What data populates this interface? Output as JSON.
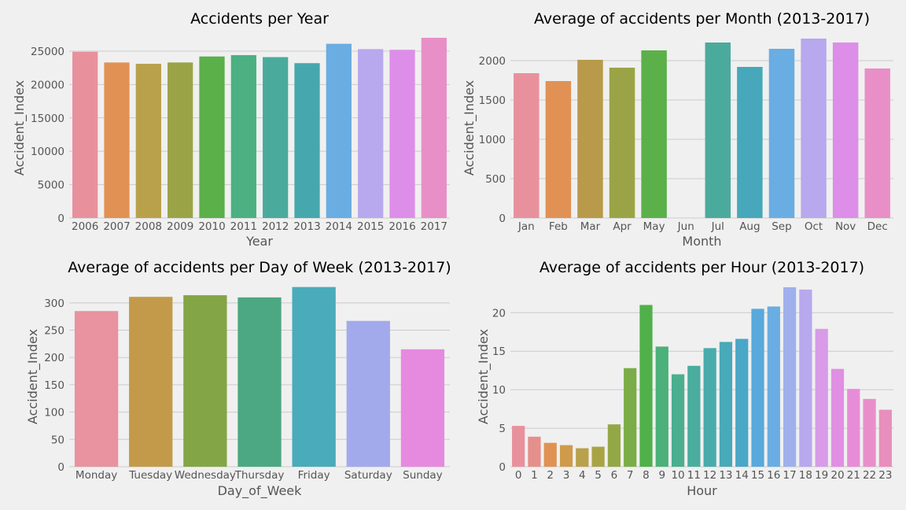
{
  "chart_data": [
    {
      "type": "bar",
      "title": "Accidents per Year",
      "xlabel": "Year",
      "ylabel": "Accident_Index",
      "ylim": [
        0,
        27000
      ],
      "yticks": [
        0,
        5000,
        10000,
        15000,
        20000,
        25000
      ],
      "categories": [
        "2006",
        "2007",
        "2008",
        "2009",
        "2010",
        "2011",
        "2012",
        "2013",
        "2014",
        "2015",
        "2016",
        "2017"
      ],
      "values": [
        24900,
        23300,
        23100,
        23300,
        24200,
        24400,
        24100,
        23200,
        26100,
        25300,
        25200,
        27000
      ],
      "colors": [
        "#e8919d",
        "#e29154",
        "#b8a14a",
        "#9aa446",
        "#5bb04a",
        "#4cb082",
        "#4aab9d",
        "#46a8ad",
        "#6aade2",
        "#b8a8ed",
        "#dd8ee8",
        "#e88fc7"
      ],
      "grid": true
    },
    {
      "type": "bar",
      "title": "Average of accidents per Month (2013-2017)",
      "xlabel": "Month",
      "ylabel": "Accident_Index",
      "ylim": [
        0,
        2290
      ],
      "yticks": [
        0,
        500,
        1000,
        1500,
        2000
      ],
      "categories": [
        "Jan",
        "Feb",
        "Mar",
        "Apr",
        "May",
        "Jun",
        "Jul",
        "Aug",
        "Sep",
        "Oct",
        "Nov",
        "Dec"
      ],
      "values": [
        1840,
        1740,
        2010,
        1910,
        2130,
        0,
        2230,
        1920,
        2150,
        2280,
        2230,
        1900
      ],
      "colors": [
        "#e8919d",
        "#e29154",
        "#b89a4a",
        "#9aa446",
        "#5bb04a",
        "#4cb082",
        "#4aab9d",
        "#46a8ba",
        "#6aade2",
        "#b8a8ed",
        "#dd8ee8",
        "#e88fc7"
      ],
      "grid": true
    },
    {
      "type": "bar",
      "title": "Average of accidents per Day of Week (2013-2017)",
      "xlabel": "Day_of_Week",
      "ylabel": "Accident_Index",
      "ylim": [
        0,
        330
      ],
      "yticks": [
        0,
        50,
        100,
        150,
        200,
        250,
        300
      ],
      "categories": [
        "Monday",
        "Tuesday",
        "Wednesday",
        "Thursday",
        "Friday",
        "Saturday",
        "Sunday"
      ],
      "values": [
        285,
        311,
        314,
        310,
        329,
        267,
        215
      ],
      "colors": [
        "#e8939f",
        "#c29a4a",
        "#83a546",
        "#4ba882",
        "#4aabba",
        "#a3aaeb",
        "#e68ae0"
      ],
      "grid": true
    },
    {
      "type": "bar",
      "title": "Average of accidents per Hour (2013-2017)",
      "xlabel": "Hour",
      "ylabel": "Accident_Index",
      "ylim": [
        0,
        23.4
      ],
      "yticks": [
        0,
        5,
        10,
        15,
        20
      ],
      "categories": [
        "0",
        "1",
        "2",
        "3",
        "4",
        "5",
        "6",
        "7",
        "8",
        "9",
        "10",
        "11",
        "12",
        "13",
        "14",
        "15",
        "16",
        "17",
        "18",
        "19",
        "20",
        "21",
        "22",
        "23"
      ],
      "values": [
        5.3,
        3.9,
        3.1,
        2.8,
        2.4,
        2.6,
        5.5,
        12.8,
        21.0,
        15.6,
        12.0,
        13.1,
        15.4,
        16.2,
        16.6,
        20.5,
        20.8,
        23.3,
        23.0,
        17.9,
        12.7,
        10.1,
        8.8,
        7.4
      ],
      "colors": [
        "#e8919d",
        "#e5908a",
        "#df9254",
        "#cf9a4a",
        "#b8a14a",
        "#a8a446",
        "#94a746",
        "#7aad47",
        "#50b049",
        "#4cb07a",
        "#4baf8f",
        "#4aad9d",
        "#4aabac",
        "#48a9b8",
        "#4aa7c6",
        "#58a9dc",
        "#6aade2",
        "#9fb0ec",
        "#b8a8ed",
        "#d89be8",
        "#e08fe2",
        "#e78dd8",
        "#e88fcb",
        "#e88fbd"
      ],
      "grid": true
    }
  ]
}
